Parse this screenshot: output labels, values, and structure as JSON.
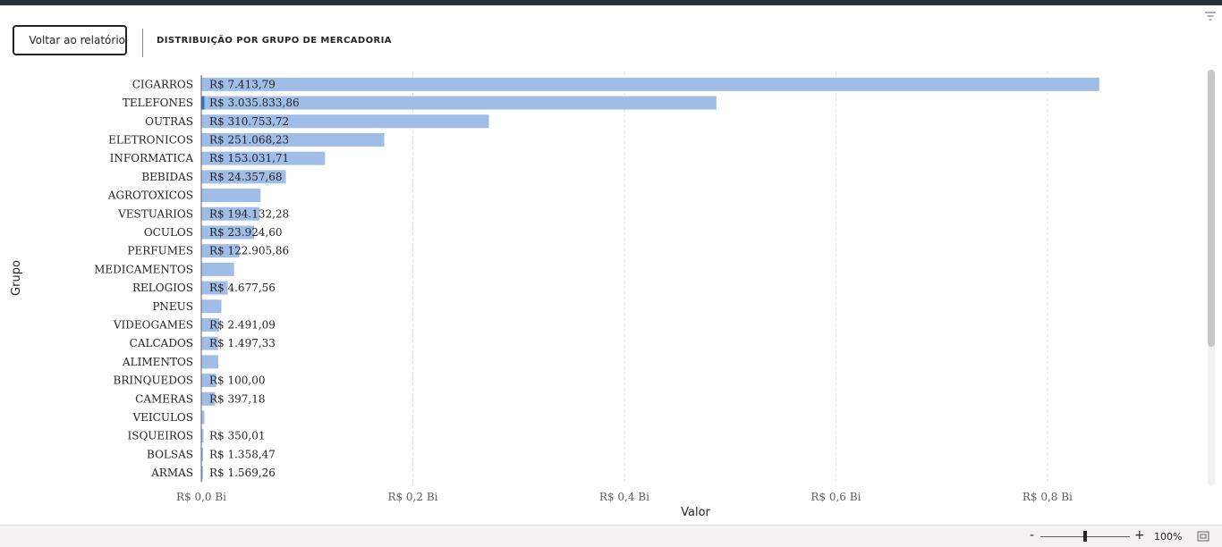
{
  "header": {
    "back_label": "Voltar ao relatório",
    "title": "DISTRIBUIÇÃO POR GRUPO DE MERCADORIA",
    "back_icon": "chevron-left-icon",
    "filter_icon": "filter-icon"
  },
  "status_bar": {
    "zoom_minus": "-",
    "zoom_plus": "+",
    "zoom_level": "100%",
    "zoom_fraction": 0.5,
    "fit_icon": "fit-to-page-icon"
  },
  "colors": {
    "bar": "#a0bde8",
    "bar_highlight": "#3a6fc4",
    "grid": "#e1dfdd",
    "text": "#252423",
    "top_bar": "#25353a"
  },
  "chart_data": {
    "type": "bar",
    "orientation": "horizontal",
    "title": "DISTRIBUIÇÃO POR GRUPO DE MERCADORIA",
    "xlabel": "Valor",
    "ylabel": "Grupo",
    "xlim": [
      0,
      0.85
    ],
    "x_unit": "Bi",
    "grid": true,
    "x_ticks": [
      {
        "value": 0,
        "label": "R$ 0,0 Bi"
      },
      {
        "value": 0.2,
        "label": "R$ 0,2 Bi"
      },
      {
        "value": 0.4,
        "label": "R$ 0,4 Bi"
      },
      {
        "value": 0.6,
        "label": "R$ 0,6 Bi"
      },
      {
        "value": 0.8,
        "label": "R$ 0,8 Bi"
      }
    ],
    "categories": [
      "CIGARROS",
      "TELEFONES",
      "OUTRAS",
      "ELETRONICOS",
      "INFORMATICA",
      "BEBIDAS",
      "AGROTOXICOS",
      "VESTUARIOS",
      "OCULOS",
      "PERFUMES",
      "MEDICAMENTOS",
      "RELOGIOS",
      "PNEUS",
      "VIDEOGAMES",
      "CALCADOS",
      "ALIMENTOS",
      "BRINQUEDOS",
      "CAMERAS",
      "VEICULOS",
      "ISQUEIROS",
      "BOLSAS",
      "ARMAS"
    ],
    "values": [
      0.849,
      0.487,
      0.272,
      0.173,
      0.117,
      0.08,
      0.056,
      0.055,
      0.05,
      0.036,
      0.031,
      0.025,
      0.019,
      0.017,
      0.016,
      0.016,
      0.014,
      0.013,
      0.003,
      0.002,
      0.0015,
      0.0012
    ],
    "highlight_values": [
      0,
      0.003,
      0,
      0,
      0,
      0,
      0,
      0,
      0,
      0,
      0,
      0,
      0,
      0,
      0,
      0,
      0,
      0,
      0,
      0,
      0,
      0
    ],
    "data_labels": [
      "R$ 7.413,79",
      "R$ 3.035.833,86",
      "R$ 310.753,72",
      "R$ 251.068,23",
      "R$ 153.031,71",
      "R$ 24.357,68",
      "",
      "R$ 194.132,28",
      "R$ 23.924,60",
      "R$ 122.905,86",
      "",
      "R$ 4.677,56",
      "",
      "R$ 2.491,09",
      "R$ 1.497,33",
      "",
      "R$ 100,00",
      "R$ 397,18",
      "",
      "R$ 350,01",
      "R$ 1.358,47",
      "R$ 1.569,26"
    ]
  }
}
